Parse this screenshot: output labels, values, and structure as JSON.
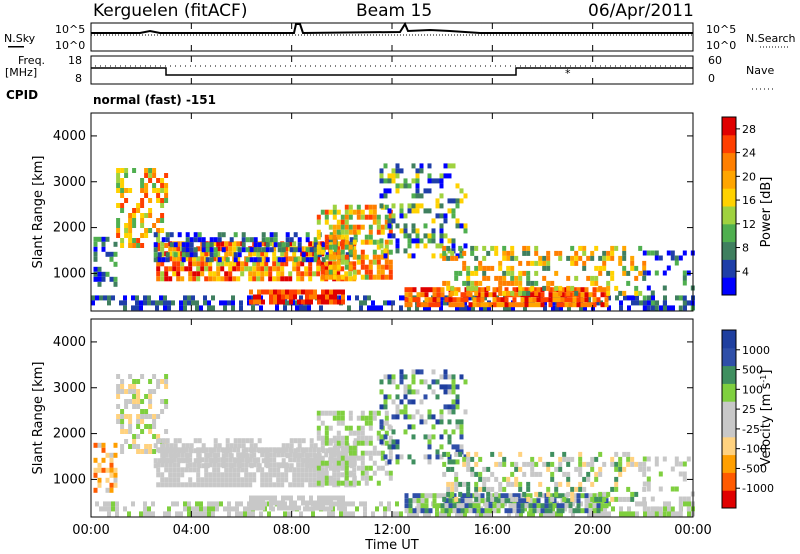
{
  "header": {
    "station": "Kerguelen (fitACF)",
    "beam": "Beam 15",
    "date": "06/Apr/2011"
  },
  "strip": {
    "nsky_label": "N.Sky",
    "nsearch_label": "N.Search",
    "noise_top": "10^5",
    "noise_bottom": "10^0",
    "freq_label_line1": "Freq.",
    "freq_label_line2": "[MHz]",
    "freq_top": "18",
    "freq_bottom": "8",
    "nave_label": "Nave",
    "nave_top": "60",
    "nave_bottom": "0",
    "cpid_label": "CPID",
    "cpid_value": "normal (fast) -151"
  },
  "colors": {
    "power_scale": [
      "#0000ff",
      "#1f3fa8",
      "#3f7f5f",
      "#4faf4f",
      "#9fd23f",
      "#ffd200",
      "#ffa500",
      "#ff7f00",
      "#ff3f00",
      "#e00000"
    ],
    "velocity_scale": [
      "#e00000",
      "#ff5a00",
      "#ff9f00",
      "#ffd27f",
      "#c8c8c8",
      "#c8c8c8",
      "#7fcf3f",
      "#3f8f5f",
      "#2f4fa8",
      "#1f3f9f"
    ],
    "ground_scatter": "#b4b4b4"
  },
  "chart_data": [
    {
      "type": "heatmap",
      "panel": "power",
      "ylabel": "Slant Range [km]",
      "yticks": [
        "1000",
        "2000",
        "3000",
        "4000"
      ],
      "ylim": [
        180,
        4500
      ],
      "colorbar_label": "Power [dB]",
      "colorbar_ticks": [
        "4",
        "8",
        "12",
        "16",
        "20",
        "24",
        "28"
      ],
      "colorbar_range": [
        0,
        30
      ]
    },
    {
      "type": "heatmap",
      "panel": "velocity",
      "ylabel": "Slant Range [km]",
      "yticks": [
        "1000",
        "2000",
        "3000",
        "4000"
      ],
      "ylim": [
        180,
        4500
      ],
      "colorbar_label": "Velocity [m s^-1]",
      "colorbar_ticks": [
        "-1000",
        "-500",
        "-100",
        "-25",
        "25",
        "100",
        "500",
        "1000"
      ],
      "colorbar_range": [
        -1000,
        1000
      ]
    }
  ],
  "axes": {
    "xlabel": "Time UT",
    "xticks": [
      "00:00",
      "04:00",
      "08:00",
      "12:00",
      "16:00",
      "20:00",
      "00:00"
    ],
    "xrange_hours": [
      0,
      24
    ]
  }
}
